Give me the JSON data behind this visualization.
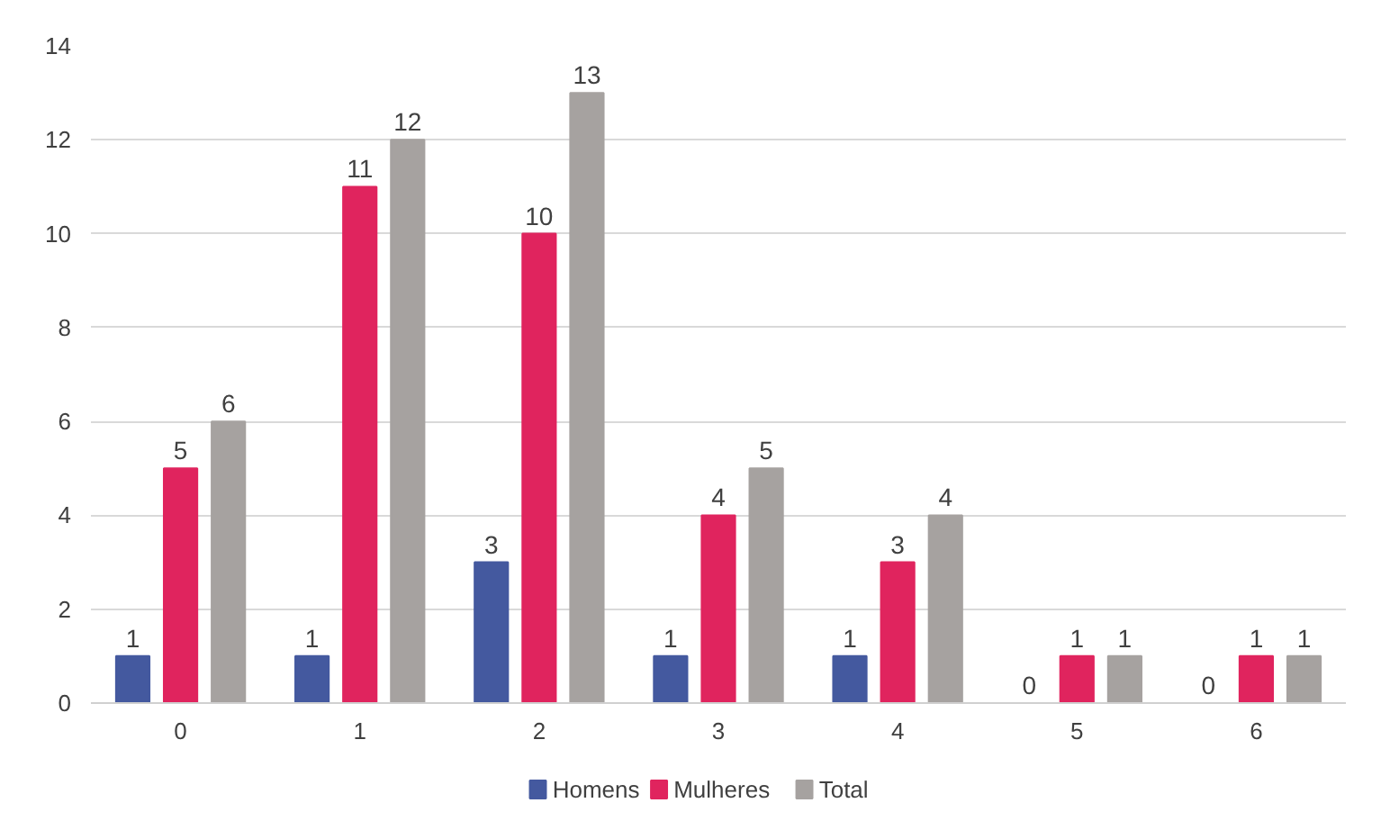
{
  "chart_data": {
    "type": "bar",
    "categories": [
      "0",
      "1",
      "2",
      "3",
      "4",
      "5",
      "6"
    ],
    "series": [
      {
        "name": "Homens",
        "color": "#44599f",
        "values": [
          1,
          1,
          3,
          1,
          1,
          0,
          0
        ]
      },
      {
        "name": "Mulheres",
        "color": "#e0245e",
        "values": [
          5,
          11,
          10,
          4,
          3,
          1,
          1
        ]
      },
      {
        "name": "Total",
        "color": "#a6a2a0",
        "values": [
          6,
          12,
          13,
          5,
          4,
          1,
          1
        ]
      }
    ],
    "ylim": [
      0,
      14
    ],
    "yticks": [
      0,
      2,
      4,
      6,
      8,
      10,
      12,
      14
    ],
    "grid": "y",
    "legend": "bottom",
    "data_labels": true
  }
}
